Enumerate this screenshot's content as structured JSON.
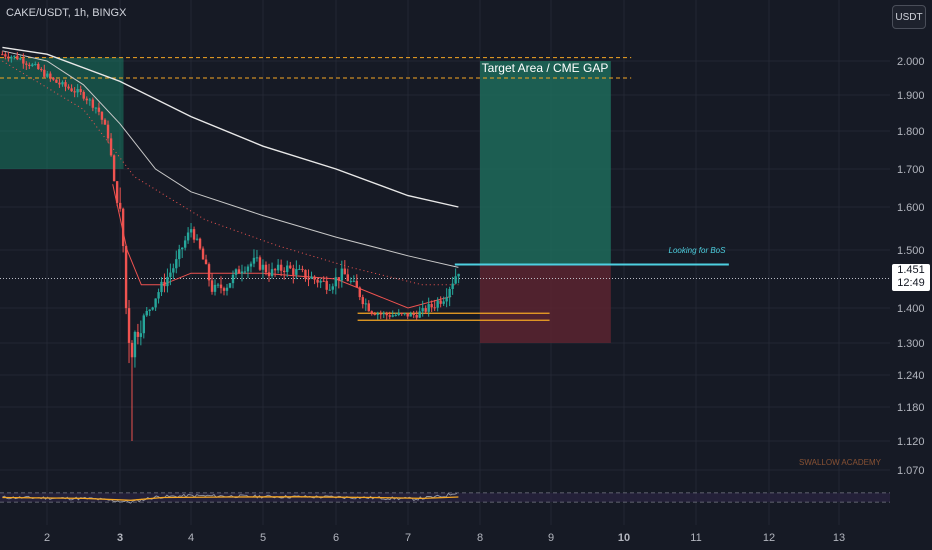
{
  "header": {
    "symbol": "CAKE/USDT, 1h, BINGX"
  },
  "currency_button": "USDT",
  "watermark": "SWALLOW ACADEMY",
  "last_price": {
    "value": "1.451",
    "countdown": "12:49"
  },
  "annotations": {
    "target_label": "Target Area / CME GAP",
    "bos_label": "Looking for BoS"
  },
  "colors": {
    "background": "#161a25",
    "bull": "#26a69a",
    "bear": "#ef5350",
    "target_zone": "#1d6b5a",
    "stop_zone": "#5a2530",
    "gap_line": "#f5a623",
    "bos_line": "#4dd0e1",
    "ma_long": "#e8e8e8",
    "ma_mid": "#c8c8c8",
    "range_line": "#f5a623",
    "rsi": "#9598a1",
    "rsi_ma": "#f5a623",
    "watermark": "#b8693a"
  },
  "chart_data": {
    "type": "candlestick",
    "ylim": [
      1.04,
      2.06
    ],
    "xlim": [
      1.38,
      13.7
    ],
    "y_ticks": [
      "1.070",
      "1.120",
      "1.180",
      "1.240",
      "1.300",
      "1.400",
      "1.500",
      "1.600",
      "1.700",
      "1.800",
      "1.900",
      "2.000"
    ],
    "x_ticks": [
      {
        "label": "2",
        "x": 2,
        "bold": false
      },
      {
        "label": "3",
        "x": 3,
        "bold": true
      },
      {
        "label": "4",
        "x": 4,
        "bold": false
      },
      {
        "label": "5",
        "x": 5,
        "bold": false
      },
      {
        "label": "6",
        "x": 6,
        "bold": false
      },
      {
        "label": "7",
        "x": 7,
        "bold": false
      },
      {
        "label": "8",
        "x": 8,
        "bold": false
      },
      {
        "label": "9",
        "x": 9,
        "bold": false
      },
      {
        "label": "10",
        "x": 10,
        "bold": true
      },
      {
        "label": "11",
        "x": 11,
        "bold": false
      },
      {
        "label": "12",
        "x": 12,
        "bold": false
      },
      {
        "label": "13",
        "x": 13,
        "bold": false
      }
    ],
    "price_anchors": [
      [
        1.38,
        2.02
      ],
      [
        1.6,
        2.01
      ],
      [
        1.85,
        1.98
      ],
      [
        2.1,
        1.94
      ],
      [
        2.3,
        1.92
      ],
      [
        2.5,
        1.9
      ],
      [
        2.7,
        1.86
      ],
      [
        2.85,
        1.78
      ],
      [
        2.92,
        1.66
      ],
      [
        3.0,
        1.58
      ],
      [
        3.05,
        1.5
      ],
      [
        3.1,
        1.36
      ],
      [
        3.15,
        1.28
      ],
      [
        3.2,
        1.32
      ],
      [
        3.35,
        1.38
      ],
      [
        3.5,
        1.42
      ],
      [
        3.65,
        1.45
      ],
      [
        3.8,
        1.48
      ],
      [
        4.0,
        1.55
      ],
      [
        4.15,
        1.49
      ],
      [
        4.3,
        1.43
      ],
      [
        4.5,
        1.44
      ],
      [
        4.7,
        1.47
      ],
      [
        4.9,
        1.48
      ],
      [
        5.1,
        1.46
      ],
      [
        5.3,
        1.47
      ],
      [
        5.5,
        1.46
      ],
      [
        5.7,
        1.45
      ],
      [
        5.9,
        1.44
      ],
      [
        6.1,
        1.46
      ],
      [
        6.3,
        1.43
      ],
      [
        6.5,
        1.39
      ],
      [
        6.7,
        1.38
      ],
      [
        6.9,
        1.38
      ],
      [
        7.1,
        1.38
      ],
      [
        7.3,
        1.4
      ],
      [
        7.5,
        1.42
      ],
      [
        7.72,
        1.47
      ]
    ],
    "ma_long": [
      [
        1.38,
        2.04
      ],
      [
        2.0,
        2.02
      ],
      [
        3.0,
        1.94
      ],
      [
        4.0,
        1.84
      ],
      [
        5.0,
        1.76
      ],
      [
        6.0,
        1.7
      ],
      [
        7.0,
        1.63
      ],
      [
        7.7,
        1.6
      ]
    ],
    "ma_mid": [
      [
        1.38,
        2.03
      ],
      [
        2.0,
        2.0
      ],
      [
        2.5,
        1.93
      ],
      [
        3.0,
        1.82
      ],
      [
        3.5,
        1.7
      ],
      [
        4.0,
        1.64
      ],
      [
        5.0,
        1.58
      ],
      [
        6.0,
        1.53
      ],
      [
        7.0,
        1.49
      ],
      [
        7.7,
        1.47
      ]
    ],
    "ma_fast": [
      [
        2.9,
        1.66
      ],
      [
        3.1,
        1.5
      ],
      [
        3.3,
        1.44
      ],
      [
        3.6,
        1.44
      ],
      [
        4.0,
        1.46
      ],
      [
        5.0,
        1.46
      ],
      [
        6.0,
        1.45
      ],
      [
        7.0,
        1.4
      ],
      [
        7.6,
        1.42
      ]
    ],
    "ma_dotted": [
      [
        1.38,
        2.0
      ],
      [
        2.5,
        1.86
      ],
      [
        3.2,
        1.68
      ],
      [
        4.2,
        1.57
      ],
      [
        5.2,
        1.51
      ],
      [
        6.2,
        1.47
      ],
      [
        7.2,
        1.44
      ],
      [
        7.7,
        1.44
      ]
    ],
    "target_zone": {
      "x": [
        8.0,
        9.82
      ],
      "y": [
        1.475,
        2.0
      ]
    },
    "stop_zone": {
      "x": [
        8.0,
        9.82
      ],
      "y": [
        1.3,
        1.475
      ]
    },
    "gap_lines": [
      2.01,
      1.95
    ],
    "bos_line": {
      "x": [
        7.65,
        11.45
      ],
      "y": 1.475
    },
    "range_lines": {
      "x": [
        6.3,
        8.98
      ],
      "y": [
        1.385,
        1.365
      ]
    },
    "last_price_y": 1.451,
    "wick_low": {
      "x": 3.15,
      "y": 1.12
    },
    "rsi": {
      "upper": 70,
      "lower": 30,
      "ylim": [
        0,
        100
      ],
      "anchors": [
        [
          1.38,
          50
        ],
        [
          2.0,
          48
        ],
        [
          2.6,
          45
        ],
        [
          3.15,
          30
        ],
        [
          3.5,
          52
        ],
        [
          4.0,
          58
        ],
        [
          5.0,
          54
        ],
        [
          6.0,
          52
        ],
        [
          6.6,
          48
        ],
        [
          7.1,
          44
        ],
        [
          7.5,
          56
        ],
        [
          7.7,
          75
        ]
      ],
      "ma": [
        [
          1.38,
          50
        ],
        [
          2.5,
          46
        ],
        [
          3.15,
          38
        ],
        [
          3.6,
          50
        ],
        [
          4.5,
          52
        ],
        [
          5.5,
          53
        ],
        [
          6.5,
          50
        ],
        [
          7.2,
          46
        ],
        [
          7.7,
          52
        ]
      ]
    }
  }
}
